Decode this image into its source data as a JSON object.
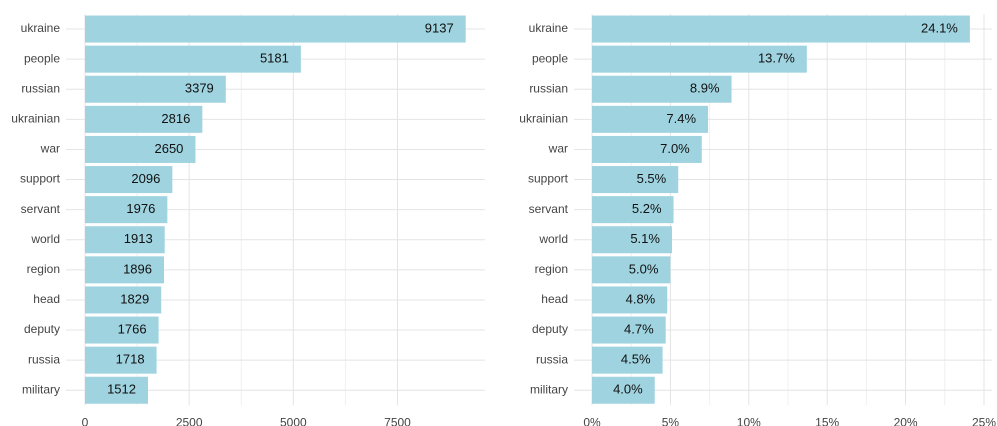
{
  "chart_data": [
    {
      "type": "bar",
      "orientation": "horizontal",
      "categories": [
        "ukraine",
        "people",
        "russian",
        "ukrainian",
        "war",
        "support",
        "servant",
        "world",
        "region",
        "head",
        "deputy",
        "russia",
        "military"
      ],
      "values": [
        9137,
        5181,
        3379,
        2816,
        2650,
        2096,
        1976,
        1913,
        1896,
        1829,
        1766,
        1718,
        1512
      ],
      "color": "#9fd3e0",
      "xlim": [
        0,
        9600
      ],
      "xticks": [
        0,
        2500,
        5000,
        7500
      ],
      "grid": true,
      "minor_grid": true
    },
    {
      "type": "bar",
      "orientation": "horizontal",
      "categories": [
        "ukraine",
        "people",
        "russian",
        "ukrainian",
        "war",
        "support",
        "servant",
        "world",
        "region",
        "head",
        "deputy",
        "russia",
        "military"
      ],
      "values": [
        24.1,
        13.7,
        8.9,
        7.4,
        7.0,
        5.5,
        5.2,
        5.1,
        5.0,
        4.8,
        4.7,
        4.5,
        4.0
      ],
      "value_labels": [
        "24.1%",
        "13.7%",
        "8.9%",
        "7.4%",
        "7.0%",
        "5.5%",
        "5.2%",
        "5.1%",
        "5.0%",
        "4.8%",
        "4.7%",
        "4.5%",
        "4.0%"
      ],
      "color": "#9fd3e0",
      "xlim": [
        0,
        25
      ],
      "xticks": [
        {
          "value": 0,
          "label": "0%"
        },
        {
          "value": 5,
          "label": "5%"
        },
        {
          "value": 10,
          "label": "10%"
        },
        {
          "value": 15,
          "label": "15%"
        },
        {
          "value": 20,
          "label": "20%"
        },
        {
          "value": 25,
          "label": "25%"
        }
      ],
      "grid": true,
      "minor_grid": true
    }
  ]
}
